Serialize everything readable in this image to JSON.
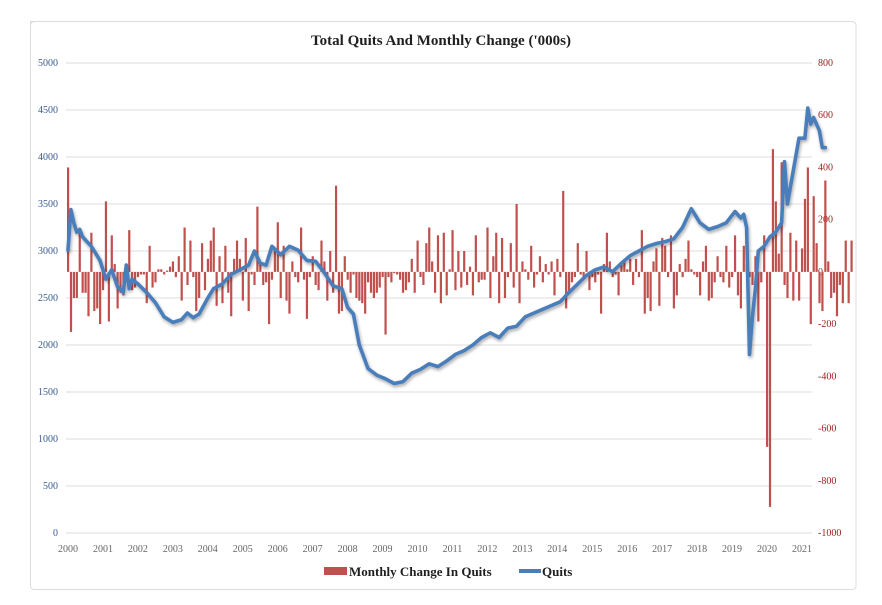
{
  "chart_data": {
    "type": "bar+line",
    "title": "Total Quits And Monthly Change ('000s)",
    "xlabel": "",
    "ylabel_left": "",
    "ylabel_right": "",
    "x_tick_labels": [
      "2000",
      "2001",
      "2002",
      "2003",
      "2004",
      "2005",
      "2006",
      "2007",
      "2008",
      "2009",
      "2010",
      "2011",
      "2012",
      "2013",
      "2014",
      "2015",
      "2016",
      "2017",
      "2018",
      "2019",
      "2020",
      "2021"
    ],
    "y_left": {
      "ticks": [
        0,
        500,
        1000,
        1500,
        2000,
        2500,
        3000,
        3500,
        4000,
        4500,
        5000
      ],
      "range": [
        0,
        5000
      ]
    },
    "y_right": {
      "ticks": [
        -1000,
        -800,
        -600,
        -400,
        -200,
        0,
        200,
        400,
        600,
        800
      ],
      "range": [
        -1000,
        800
      ]
    },
    "grid": true,
    "legend_position": "bottom",
    "colors": {
      "bars": "#c0504d",
      "line": "#4a7ebb",
      "left_axis_text": "#3a5a8a",
      "right_axis_text": "#9b1c1c"
    },
    "period": {
      "start": "2000-01",
      "frequency": "monthly"
    },
    "series": [
      {
        "name": "Quits",
        "type": "line",
        "axis": "left",
        "anchors": [
          [
            "2000-01",
            3010
          ],
          [
            "2000-02",
            3440
          ],
          [
            "2000-03",
            3300
          ],
          [
            "2000-04",
            3200
          ],
          [
            "2000-05",
            3230
          ],
          [
            "2000-06",
            3150
          ],
          [
            "2000-09",
            3050
          ],
          [
            "2000-12",
            2900
          ],
          [
            "2001-02",
            2700
          ],
          [
            "2001-04",
            2800
          ],
          [
            "2001-06",
            2620
          ],
          [
            "2001-08",
            2560
          ],
          [
            "2001-09",
            2850
          ],
          [
            "2001-10",
            2600
          ],
          [
            "2001-11",
            2700
          ],
          [
            "2002-01",
            2650
          ],
          [
            "2002-04",
            2560
          ],
          [
            "2002-07",
            2450
          ],
          [
            "2002-10",
            2300
          ],
          [
            "2003-01",
            2240
          ],
          [
            "2003-04",
            2270
          ],
          [
            "2003-06",
            2340
          ],
          [
            "2003-08",
            2290
          ],
          [
            "2003-10",
            2330
          ],
          [
            "2004-01",
            2500
          ],
          [
            "2004-03",
            2600
          ],
          [
            "2004-06",
            2650
          ],
          [
            "2004-09",
            2750
          ],
          [
            "2004-12",
            2800
          ],
          [
            "2005-03",
            2850
          ],
          [
            "2005-05",
            3000
          ],
          [
            "2005-07",
            2870
          ],
          [
            "2005-09",
            2850
          ],
          [
            "2005-11",
            3050
          ],
          [
            "2006-02",
            2960
          ],
          [
            "2006-05",
            3050
          ],
          [
            "2006-08",
            3010
          ],
          [
            "2006-11",
            2900
          ],
          [
            "2007-02",
            2890
          ],
          [
            "2007-05",
            2770
          ],
          [
            "2007-08",
            2630
          ],
          [
            "2007-11",
            2600
          ],
          [
            "2008-01",
            2400
          ],
          [
            "2008-03",
            2330
          ],
          [
            "2008-05",
            2000
          ],
          [
            "2008-08",
            1750
          ],
          [
            "2008-11",
            1680
          ],
          [
            "2009-02",
            1640
          ],
          [
            "2009-05",
            1590
          ],
          [
            "2009-08",
            1610
          ],
          [
            "2009-11",
            1700
          ],
          [
            "2010-02",
            1740
          ],
          [
            "2010-05",
            1800
          ],
          [
            "2010-08",
            1770
          ],
          [
            "2010-11",
            1830
          ],
          [
            "2011-02",
            1900
          ],
          [
            "2011-05",
            1940
          ],
          [
            "2011-08",
            2000
          ],
          [
            "2011-11",
            2080
          ],
          [
            "2012-02",
            2130
          ],
          [
            "2012-05",
            2080
          ],
          [
            "2012-08",
            2180
          ],
          [
            "2012-11",
            2200
          ],
          [
            "2013-02",
            2300
          ],
          [
            "2013-05",
            2340
          ],
          [
            "2013-08",
            2380
          ],
          [
            "2013-11",
            2420
          ],
          [
            "2014-02",
            2460
          ],
          [
            "2014-05",
            2560
          ],
          [
            "2014-08",
            2650
          ],
          [
            "2014-11",
            2740
          ],
          [
            "2015-02",
            2800
          ],
          [
            "2015-05",
            2830
          ],
          [
            "2015-08",
            2780
          ],
          [
            "2015-11",
            2870
          ],
          [
            "2016-02",
            2950
          ],
          [
            "2016-05",
            3000
          ],
          [
            "2016-08",
            3050
          ],
          [
            "2016-11",
            3080
          ],
          [
            "2017-02",
            3100
          ],
          [
            "2017-05",
            3130
          ],
          [
            "2017-08",
            3250
          ],
          [
            "2017-11",
            3450
          ],
          [
            "2018-02",
            3300
          ],
          [
            "2018-05",
            3230
          ],
          [
            "2018-08",
            3260
          ],
          [
            "2018-11",
            3300
          ],
          [
            "2019-02",
            3420
          ],
          [
            "2019-04",
            3350
          ],
          [
            "2019-05",
            3390
          ],
          [
            "2019-06",
            3250
          ],
          [
            "2019-07",
            1900
          ],
          [
            "2019-08",
            2300
          ],
          [
            "2019-09",
            2600
          ],
          [
            "2019-10",
            3000
          ],
          [
            "2019-12",
            3050
          ],
          [
            "2020-02",
            3150
          ],
          [
            "2020-04",
            3200
          ],
          [
            "2020-06",
            3300
          ],
          [
            "2020-07",
            3950
          ],
          [
            "2020-08",
            3500
          ],
          [
            "2020-10",
            3850
          ],
          [
            "2020-12",
            4200
          ],
          [
            "2021-02",
            4200
          ],
          [
            "2021-03",
            4520
          ],
          [
            "2021-04",
            4350
          ],
          [
            "2021-05",
            4420
          ],
          [
            "2021-07",
            4280
          ],
          [
            "2021-08",
            4100
          ],
          [
            "2021-09",
            4100
          ]
        ]
      },
      {
        "name": "Monthly Change In Quits",
        "type": "bar",
        "axis": "right",
        "values": [
          400,
          -230,
          -100,
          -100,
          160,
          -80,
          -80,
          -170,
          150,
          -150,
          -140,
          -200,
          -70,
          270,
          -190,
          140,
          30,
          -140,
          -80,
          -90,
          -40,
          160,
          -70,
          -60,
          -20,
          -10,
          -10,
          -120,
          100,
          -60,
          -40,
          10,
          10,
          -10,
          5,
          20,
          40,
          -20,
          60,
          -110,
          170,
          -50,
          120,
          -20,
          -150,
          -100,
          110,
          -70,
          50,
          120,
          170,
          -130,
          60,
          -120,
          100,
          -80,
          -170,
          50,
          120,
          50,
          -110,
          130,
          -150,
          -10,
          -50,
          250,
          40,
          -50,
          -40,
          -200,
          -30,
          80,
          190,
          -100,
          100,
          -110,
          -160,
          40,
          -20,
          -40,
          170,
          -30,
          -180,
          -20,
          60,
          -50,
          -70,
          120,
          40,
          -110,
          80,
          -80,
          330,
          -160,
          -150,
          60,
          -30,
          -80,
          -10,
          -100,
          -110,
          -120,
          -160,
          -40,
          -80,
          -100,
          -80,
          -60,
          -20,
          -240,
          -20,
          -40,
          -5,
          -10,
          -30,
          -80,
          -70,
          -40,
          50,
          -80,
          120,
          -20,
          -50,
          110,
          170,
          40,
          -80,
          140,
          -120,
          150,
          -90,
          10,
          160,
          -70,
          80,
          -60,
          80,
          -50,
          20,
          -90,
          140,
          -40,
          -30,
          -30,
          170,
          -100,
          60,
          150,
          -120,
          130,
          -100,
          -20,
          110,
          -60,
          260,
          -120,
          40,
          10,
          -30,
          100,
          -60,
          -10,
          60,
          -40,
          30,
          -10,
          40,
          -90,
          50,
          -20,
          310,
          -140,
          -80,
          -40,
          -20,
          110,
          -10,
          -20,
          80,
          -70,
          -20,
          -40,
          -10,
          -160,
          30,
          150,
          40,
          -20,
          -10,
          -90,
          30,
          40,
          10,
          50,
          -50,
          50,
          -20,
          160,
          -160,
          -100,
          -150,
          40,
          90,
          -130,
          130,
          100,
          -20,
          140,
          -140,
          -90,
          30,
          -20,
          50,
          120,
          10,
          -10,
          -20,
          -90,
          40,
          100,
          -110,
          -100,
          -40,
          60,
          -20,
          -40,
          100,
          -60,
          -20,
          140,
          -90,
          -140,
          100,
          30,
          -20,
          -50,
          60,
          -190,
          -40,
          140,
          -670,
          -900,
          470,
          270,
          70,
          420,
          -50,
          -100,
          150,
          -110,
          120,
          -110,
          90,
          280,
          400,
          -200,
          290,
          110,
          -120,
          -150,
          350,
          40,
          -100,
          -80,
          -170,
          -50,
          -120,
          120,
          -120,
          120
        ]
      }
    ]
  },
  "legend": {
    "bar_label": "Monthly Change In Quits",
    "line_label": "Quits"
  }
}
